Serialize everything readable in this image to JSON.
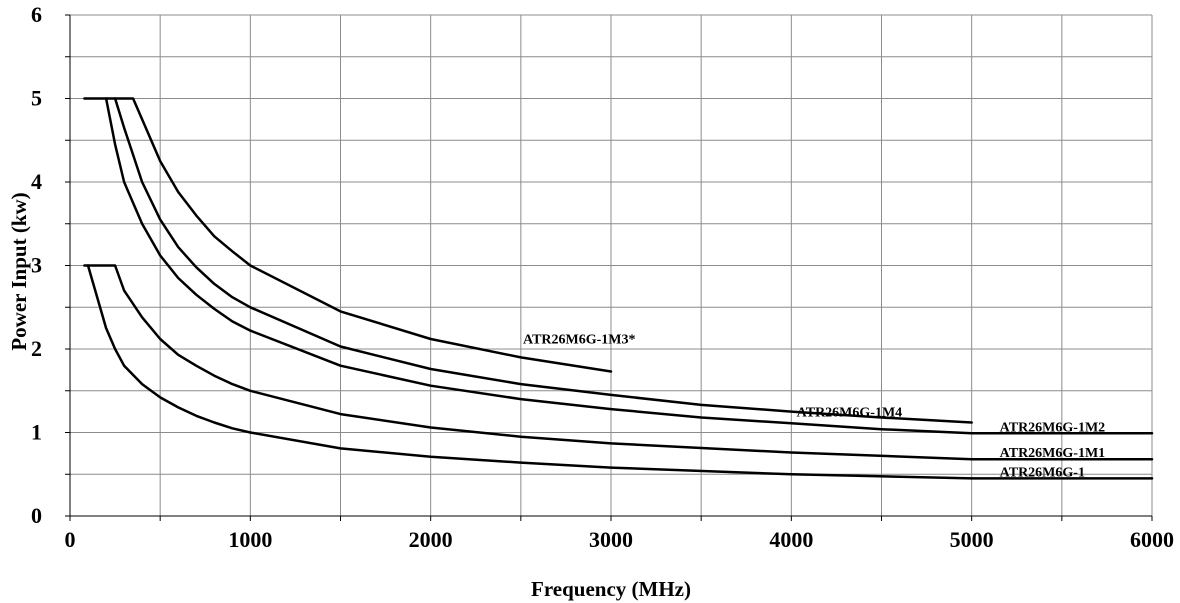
{
  "chart_data": {
    "type": "line",
    "title": "",
    "xlabel": "Frequency (MHz)",
    "ylabel": "Power Input (kw)",
    "xlim": [
      0,
      6000
    ],
    "ylim": [
      0,
      6
    ],
    "x_ticks": [
      0,
      1000,
      2000,
      3000,
      4000,
      5000,
      6000
    ],
    "y_ticks": [
      0,
      1,
      2,
      3,
      4,
      5,
      6
    ],
    "x_tick_labels": [
      "0",
      "1000",
      "2000",
      "3000",
      "4000",
      "5000",
      "6000"
    ],
    "y_tick_labels": [
      "0",
      "1",
      "2",
      "3",
      "4",
      "5",
      "6"
    ],
    "grid": true,
    "legend": "none",
    "series": [
      {
        "name": "ATR26M6G-1M3*",
        "x": [
          80,
          350,
          500,
          600,
          700,
          800,
          900,
          1000,
          1500,
          2000,
          2500,
          3000
        ],
        "y": [
          5.0,
          5.0,
          4.25,
          3.88,
          3.6,
          3.35,
          3.17,
          3.0,
          2.45,
          2.12,
          1.9,
          1.73
        ]
      },
      {
        "name": "ATR26M6G-1M4",
        "x": [
          250,
          300,
          400,
          500,
          600,
          700,
          800,
          900,
          1000,
          1500,
          2000,
          2500,
          3000,
          3500,
          4000,
          4500,
          5000
        ],
        "y": [
          5.0,
          4.65,
          4.0,
          3.55,
          3.22,
          2.98,
          2.78,
          2.62,
          2.5,
          2.03,
          1.76,
          1.58,
          1.45,
          1.33,
          1.25,
          1.18,
          1.12
        ]
      },
      {
        "name": "ATR26M6G-1M2",
        "x": [
          200,
          250,
          300,
          400,
          500,
          600,
          700,
          800,
          900,
          1000,
          1500,
          2000,
          2500,
          3000,
          3500,
          4000,
          4500,
          5000,
          6000
        ],
        "y": [
          5.0,
          4.45,
          4.0,
          3.5,
          3.12,
          2.85,
          2.65,
          2.48,
          2.33,
          2.22,
          1.8,
          1.56,
          1.4,
          1.28,
          1.18,
          1.11,
          1.04,
          0.99,
          0.99
        ]
      },
      {
        "name": "ATR26M6G-1M1",
        "x": [
          80,
          250,
          300,
          400,
          500,
          600,
          700,
          800,
          900,
          1000,
          1500,
          2000,
          2500,
          3000,
          4000,
          5000,
          6000
        ],
        "y": [
          3.0,
          3.0,
          2.7,
          2.38,
          2.12,
          1.93,
          1.8,
          1.68,
          1.58,
          1.5,
          1.22,
          1.06,
          0.95,
          0.87,
          0.76,
          0.68,
          0.68
        ]
      },
      {
        "name": "ATR26M6G-1",
        "x": [
          100,
          200,
          250,
          300,
          400,
          500,
          600,
          700,
          800,
          900,
          1000,
          1500,
          2000,
          2500,
          3000,
          4000,
          5000,
          6000
        ],
        "y": [
          3.0,
          2.25,
          2.0,
          1.8,
          1.58,
          1.42,
          1.3,
          1.2,
          1.12,
          1.05,
          1.0,
          0.81,
          0.71,
          0.64,
          0.58,
          0.5,
          0.45,
          0.45
        ]
      }
    ]
  }
}
